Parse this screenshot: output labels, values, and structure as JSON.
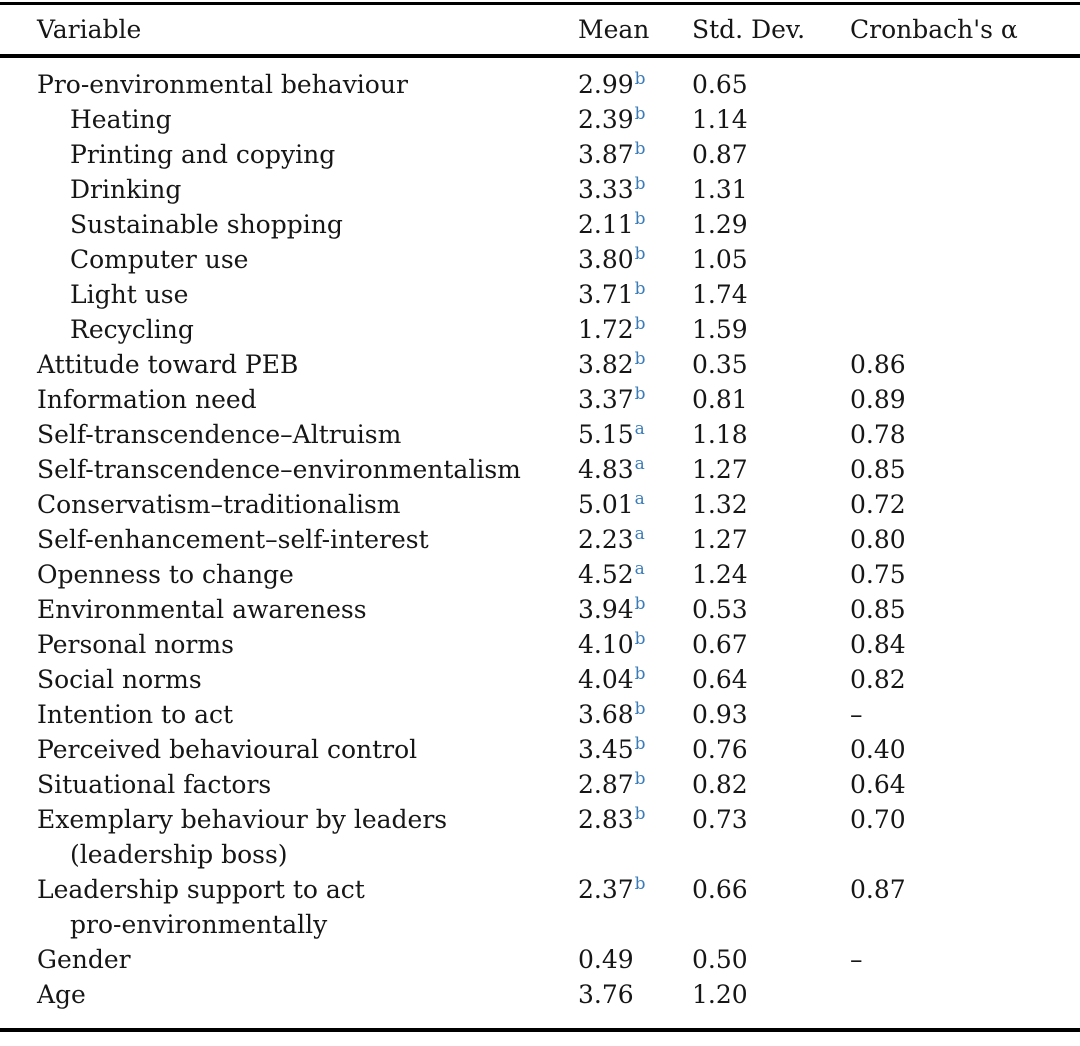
{
  "table": {
    "accent_color": "#3b7cb8",
    "rule_color": "#000000",
    "columns": {
      "variable": "Variable",
      "mean": "Mean",
      "std_dev": "Std. Dev.",
      "cronbach": "Cronbach's α"
    },
    "rows": [
      {
        "variable": "Pro-environmental behaviour",
        "indent": 0,
        "mean": "2.99",
        "sup": "b",
        "sd": "0.65",
        "alpha": ""
      },
      {
        "variable": "Heating",
        "indent": 1,
        "mean": "2.39",
        "sup": "b",
        "sd": "1.14",
        "alpha": ""
      },
      {
        "variable": "Printing and copying",
        "indent": 1,
        "mean": "3.87",
        "sup": "b",
        "sd": "0.87",
        "alpha": ""
      },
      {
        "variable": "Drinking",
        "indent": 1,
        "mean": "3.33",
        "sup": "b",
        "sd": "1.31",
        "alpha": ""
      },
      {
        "variable": "Sustainable shopping",
        "indent": 1,
        "mean": "2.11",
        "sup": "b",
        "sd": "1.29",
        "alpha": ""
      },
      {
        "variable": "Computer use",
        "indent": 1,
        "mean": "3.80",
        "sup": "b",
        "sd": "1.05",
        "alpha": ""
      },
      {
        "variable": "Light use",
        "indent": 1,
        "mean": "3.71",
        "sup": "b",
        "sd": "1.74",
        "alpha": ""
      },
      {
        "variable": "Recycling",
        "indent": 1,
        "mean": "1.72",
        "sup": "b",
        "sd": "1.59",
        "alpha": ""
      },
      {
        "variable": "Attitude toward PEB",
        "indent": 0,
        "mean": "3.82",
        "sup": "b",
        "sd": "0.35",
        "alpha": "0.86"
      },
      {
        "variable": "Information need",
        "indent": 0,
        "mean": "3.37",
        "sup": "b",
        "sd": "0.81",
        "alpha": "0.89"
      },
      {
        "variable": "Self-transcendence–Altruism",
        "indent": 0,
        "mean": "5.15",
        "sup": "a",
        "sd": "1.18",
        "alpha": "0.78"
      },
      {
        "variable": "Self-transcendence–environmentalism",
        "indent": 0,
        "mean": "4.83",
        "sup": "a",
        "sd": "1.27",
        "alpha": "0.85"
      },
      {
        "variable": "Conservatism–traditionalism",
        "indent": 0,
        "mean": "5.01",
        "sup": "a",
        "sd": "1.32",
        "alpha": "0.72"
      },
      {
        "variable": "Self-enhancement–self-interest",
        "indent": 0,
        "mean": "2.23",
        "sup": "a",
        "sd": "1.27",
        "alpha": "0.80"
      },
      {
        "variable": "Openness to change",
        "indent": 0,
        "mean": "4.52",
        "sup": "a",
        "sd": "1.24",
        "alpha": "0.75"
      },
      {
        "variable": "Environmental awareness",
        "indent": 0,
        "mean": "3.94",
        "sup": "b",
        "sd": "0.53",
        "alpha": "0.85"
      },
      {
        "variable": "Personal norms",
        "indent": 0,
        "mean": "4.10",
        "sup": "b",
        "sd": "0.67",
        "alpha": "0.84"
      },
      {
        "variable": "Social norms",
        "indent": 0,
        "mean": "4.04",
        "sup": "b",
        "sd": "0.64",
        "alpha": "0.82"
      },
      {
        "variable": "Intention to act",
        "indent": 0,
        "mean": "3.68",
        "sup": "b",
        "sd": "0.93",
        "alpha": "–"
      },
      {
        "variable": "Perceived behavioural control",
        "indent": 0,
        "mean": "3.45",
        "sup": "b",
        "sd": "0.76",
        "alpha": "0.40"
      },
      {
        "variable": "Situational factors",
        "indent": 0,
        "mean": "2.87",
        "sup": "b",
        "sd": "0.82",
        "alpha": "0.64"
      },
      {
        "variable": "Exemplary behaviour by leaders",
        "variable_line2": "(leadership boss)",
        "indent": 0,
        "mean": "2.83",
        "sup": "b",
        "sd": "0.73",
        "alpha": "0.70"
      },
      {
        "variable": "Leadership support to act",
        "variable_line2": "pro-environmentally",
        "indent": 0,
        "mean": "2.37",
        "sup": "b",
        "sd": "0.66",
        "alpha": "0.87"
      },
      {
        "variable": "Gender",
        "indent": 0,
        "mean": "0.49",
        "sup": "",
        "sd": "0.50",
        "alpha": "–"
      },
      {
        "variable": "Age",
        "indent": 0,
        "mean": "3.76",
        "sup": "",
        "sd": "1.20",
        "alpha": ""
      }
    ]
  }
}
